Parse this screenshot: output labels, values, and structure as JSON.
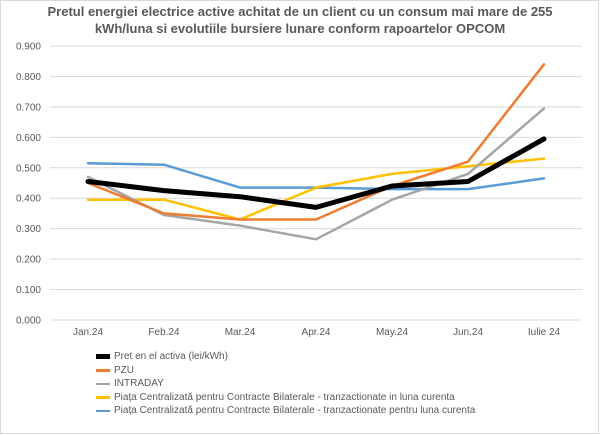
{
  "chart_data": {
    "type": "line",
    "title": "Pretul energiei electrice active achitat de un client cu un consum mai mare de 255 kWh/luna si evolutiile bursiere lunare conform rapoartelor OPCOM",
    "categories": [
      "Jan.24",
      "Feb.24",
      "Mar.24",
      "Apr.24",
      "May.24",
      "Jun.24",
      "Iulie 24"
    ],
    "ylim": [
      0,
      0.9
    ],
    "yticks": [
      "0.000",
      "0.100",
      "0.200",
      "0.300",
      "0.400",
      "0.500",
      "0.600",
      "0.700",
      "0.800",
      "0.900"
    ],
    "grid": true,
    "legend_position": "bottom",
    "series": [
      {
        "name": "Pret en el activa (lei/kWh)",
        "color": "#000000",
        "width": "bold",
        "values": [
          0.455,
          0.425,
          0.405,
          0.37,
          0.44,
          0.455,
          0.595
        ]
      },
      {
        "name": "PZU",
        "color": "#ed7d31",
        "values": [
          0.45,
          0.35,
          0.33,
          0.33,
          0.44,
          0.52,
          0.84
        ]
      },
      {
        "name": "INTRADAY",
        "color": "#a5a5a5",
        "values": [
          0.47,
          0.345,
          0.31,
          0.265,
          0.395,
          0.48,
          0.695
        ]
      },
      {
        "name": "Piața Centralizată pentru Contracte Bilaterale - tranzactionate in luna curenta",
        "color": "#ffc000",
        "values": [
          0.395,
          0.395,
          0.33,
          0.435,
          0.48,
          0.505,
          0.53
        ]
      },
      {
        "name": "Piața Centralizată pentru Contracte Bilaterale - tranzactionate pentru luna curenta",
        "color": "#5b9bd5",
        "values": [
          0.515,
          0.51,
          0.435,
          0.435,
          0.43,
          0.43,
          0.465
        ]
      }
    ]
  }
}
